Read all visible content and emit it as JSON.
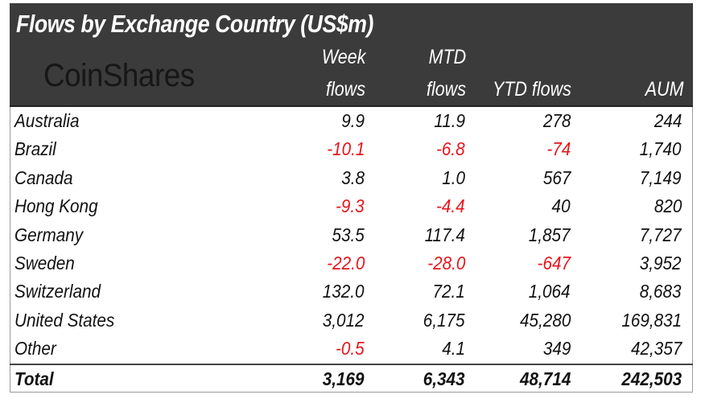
{
  "title": "Flows by Exchange Country (US$m)",
  "logo": "CoinShares",
  "colors": {
    "header_bg": "#3b3b3b",
    "negative": "#e8141b",
    "text": "#111111"
  },
  "chart_data": {
    "type": "table",
    "title": "Flows by Exchange Country (US$m)",
    "columns": [
      {
        "line1": "Week",
        "line2": "flows"
      },
      {
        "line1": "MTD",
        "line2": "flows"
      },
      {
        "line1": "",
        "line2": "YTD flows"
      },
      {
        "line1": "",
        "line2": "AUM"
      }
    ],
    "rows": [
      {
        "name": "Australia",
        "values": [
          "9.9",
          "11.9",
          "278",
          "244"
        ]
      },
      {
        "name": "Brazil",
        "values": [
          "-10.1",
          "-6.8",
          "-74",
          "1,740"
        ]
      },
      {
        "name": "Canada",
        "values": [
          "3.8",
          "1.0",
          "567",
          "7,149"
        ]
      },
      {
        "name": "Hong Kong",
        "values": [
          "-9.3",
          "-4.4",
          "40",
          "820"
        ]
      },
      {
        "name": "Germany",
        "values": [
          "53.5",
          "117.4",
          "1,857",
          "7,727"
        ]
      },
      {
        "name": "Sweden",
        "values": [
          "-22.0",
          "-28.0",
          "-647",
          "3,952"
        ]
      },
      {
        "name": "Switzerland",
        "values": [
          "132.0",
          "72.1",
          "1,064",
          "8,683"
        ]
      },
      {
        "name": "United States",
        "values": [
          "3,012",
          "6,175",
          "45,280",
          "169,831"
        ]
      },
      {
        "name": "Other",
        "values": [
          "-0.5",
          "4.1",
          "349",
          "42,357"
        ]
      }
    ],
    "total": {
      "name": "Total",
      "values": [
        "3,169",
        "6,343",
        "48,714",
        "242,503"
      ]
    }
  }
}
